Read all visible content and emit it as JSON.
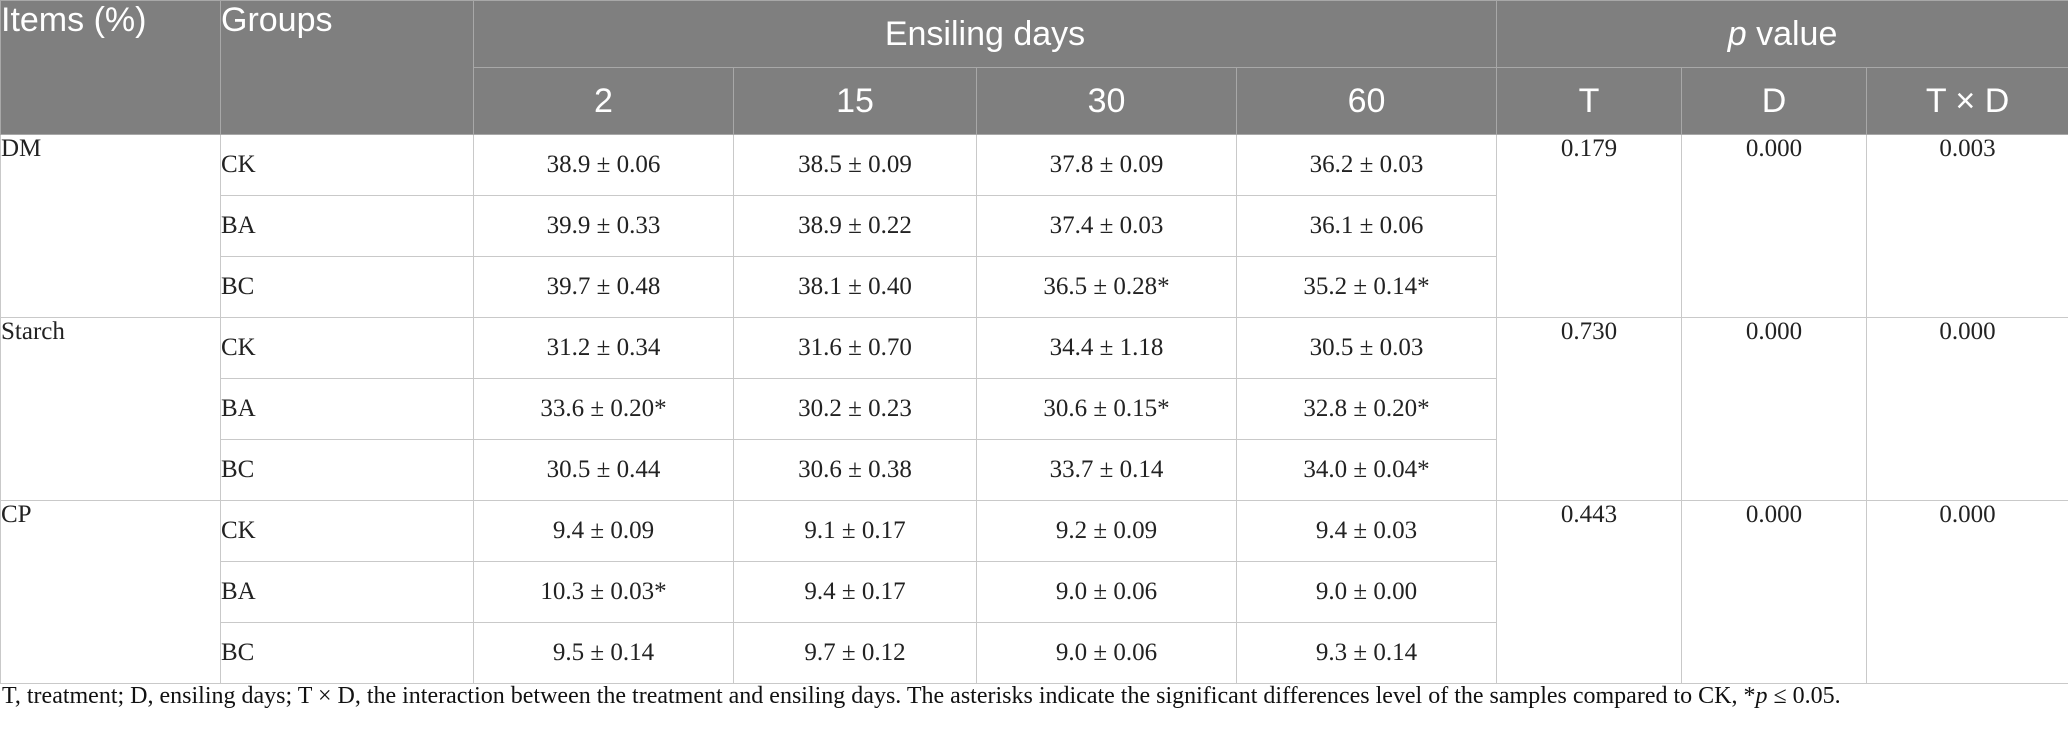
{
  "header": {
    "items_label": "Items (%)",
    "groups_label": "Groups",
    "ensiling_label": "Ensiling days",
    "pvalue_label_italic": "p",
    "pvalue_label_rest": " value",
    "days": [
      "2",
      "15",
      "30",
      "60"
    ],
    "effects": [
      "T",
      "D",
      "T × D"
    ]
  },
  "rows": [
    {
      "item": "DM",
      "groups": [
        "CK",
        "BA",
        "BC"
      ],
      "values": [
        [
          "38.9 ± 0.06",
          "38.5 ± 0.09",
          "37.8 ± 0.09",
          "36.2 ± 0.03"
        ],
        [
          "39.9 ± 0.33",
          "38.9 ± 0.22",
          "37.4 ± 0.03",
          "36.1 ± 0.06"
        ],
        [
          "39.7 ± 0.48",
          "38.1 ± 0.40",
          "36.5 ± 0.28*",
          "35.2 ± 0.14*"
        ]
      ],
      "p": [
        "0.179",
        "0.000",
        "0.003"
      ]
    },
    {
      "item": "Starch",
      "groups": [
        "CK",
        "BA",
        "BC"
      ],
      "values": [
        [
          "31.2 ± 0.34",
          "31.6 ± 0.70",
          "34.4 ± 1.18",
          "30.5 ± 0.03"
        ],
        [
          "33.6 ± 0.20*",
          "30.2 ± 0.23",
          "30.6 ± 0.15*",
          "32.8 ± 0.20*"
        ],
        [
          "30.5 ± 0.44",
          "30.6 ± 0.38",
          "33.7 ± 0.14",
          "34.0 ± 0.04*"
        ]
      ],
      "p": [
        "0.730",
        "0.000",
        "0.000"
      ]
    },
    {
      "item": "CP",
      "groups": [
        "CK",
        "BA",
        "BC"
      ],
      "values": [
        [
          "9.4 ± 0.09",
          "9.1 ± 0.17",
          "9.2 ± 0.09",
          "9.4 ± 0.03"
        ],
        [
          "10.3 ± 0.03*",
          "9.4 ± 0.17",
          "9.0 ± 0.06",
          "9.0 ± 0.00"
        ],
        [
          "9.5 ± 0.14",
          "9.7 ± 0.12",
          "9.0 ± 0.06",
          "9.3 ± 0.14"
        ]
      ],
      "p": [
        "0.443",
        "0.000",
        "0.000"
      ]
    }
  ],
  "footnote": {
    "text": "T, treatment; D, ensiling days; T × D, the interaction between the treatment and ensiling days. The asterisks indicate the significant differences level of the samples compared to CK, *",
    "italic_p": "p",
    "tail": " ≤ 0.05."
  }
}
